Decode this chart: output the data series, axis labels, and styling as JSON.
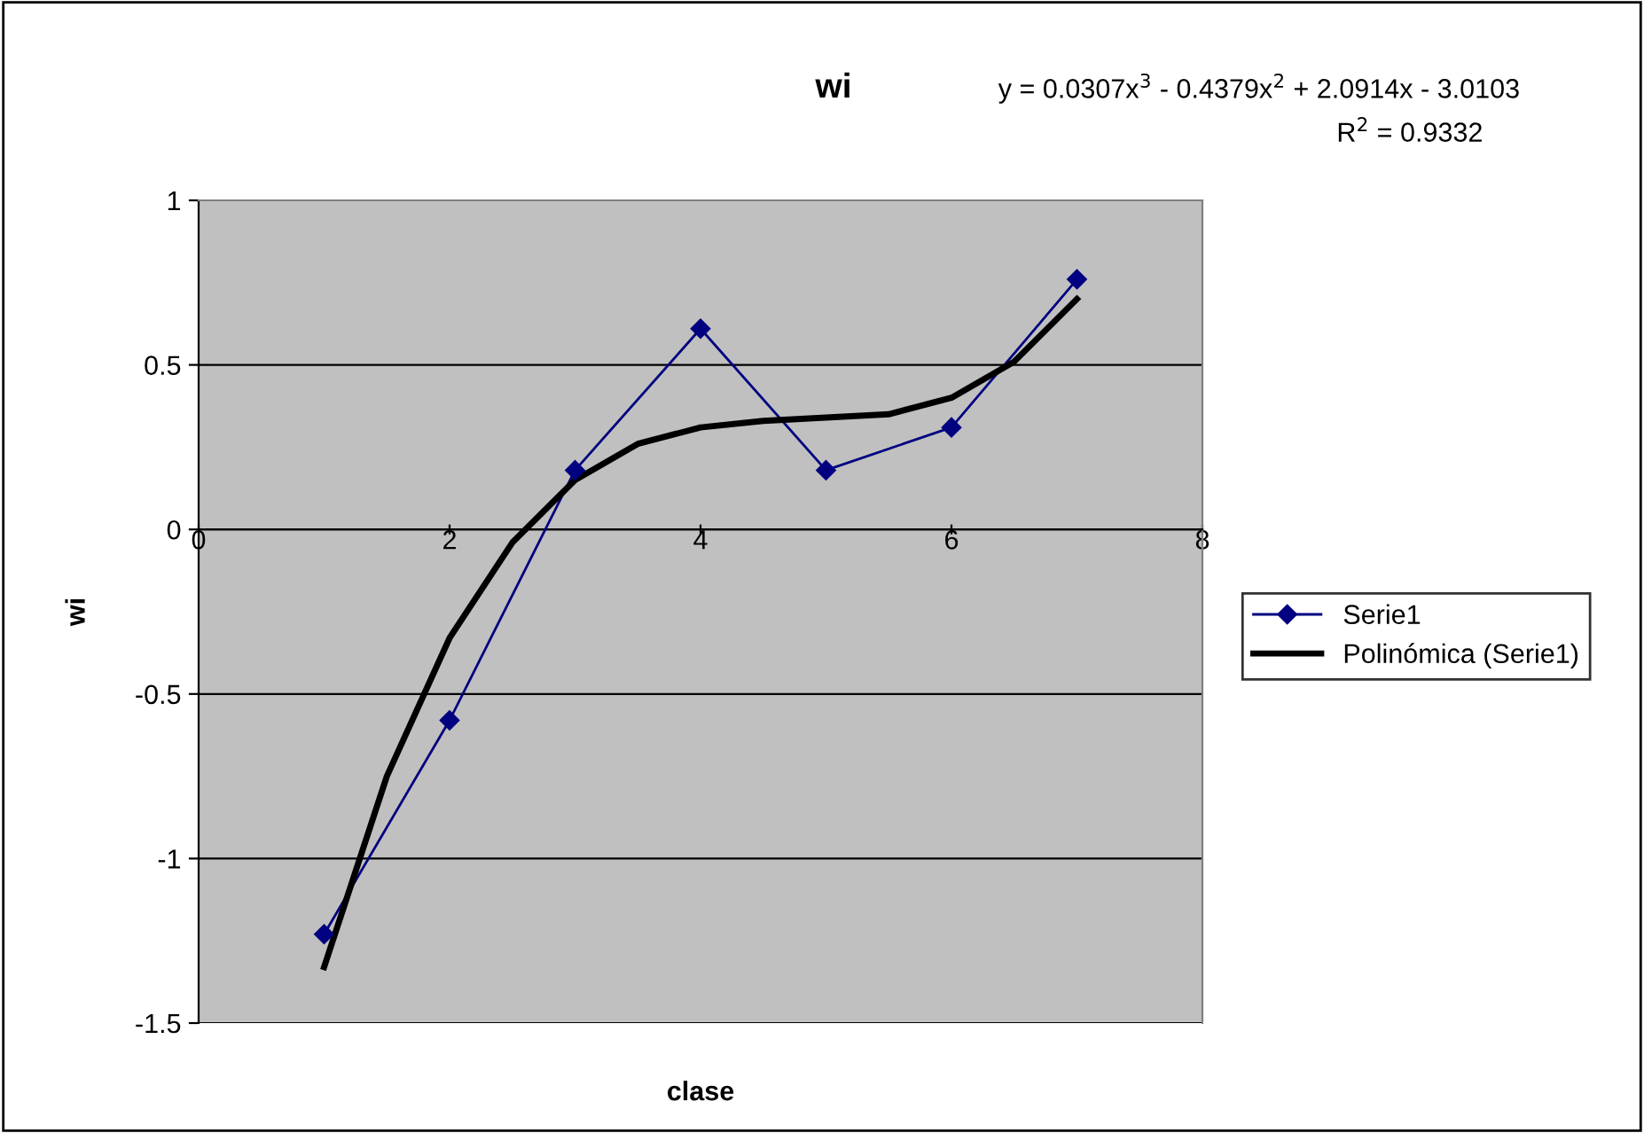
{
  "chart_data": {
    "type": "line",
    "title": "wi",
    "xlabel": "clase",
    "ylabel": "wi",
    "annotations": [
      "y = 0.0307x$^{3}$ - 0.4379x$^{2}$ + 2.0914x - 3.0103",
      "R$^{2}$ = 0.9332"
    ],
    "xlim": [
      0,
      8
    ],
    "xticks": [
      0,
      2,
      4,
      6,
      8
    ],
    "ylim": [
      -1.5,
      1
    ],
    "yticks": [
      -1.5,
      -1,
      -0.5,
      0,
      0.5,
      1
    ],
    "grid": "y",
    "legend": "right",
    "series": [
      {
        "name": "Serie1",
        "color": "#000080",
        "marker": "diamond",
        "x": [
          1,
          2,
          3,
          4,
          5,
          6,
          7
        ],
        "values": [
          -1.23,
          -0.58,
          0.18,
          0.61,
          0.18,
          0.31,
          0.76
        ]
      },
      {
        "name": "Polinómica (Serie1)",
        "color": "#000000",
        "marker": "none",
        "x": [
          1,
          1.5,
          2,
          2.5,
          3,
          3.5,
          4,
          4.5,
          5,
          5.5,
          6,
          6.5,
          7
        ],
        "values": [
          -1.33,
          -0.75,
          -0.33,
          -0.04,
          0.15,
          0.26,
          0.31,
          0.33,
          0.34,
          0.35,
          0.4,
          0.51,
          0.7
        ]
      }
    ]
  }
}
